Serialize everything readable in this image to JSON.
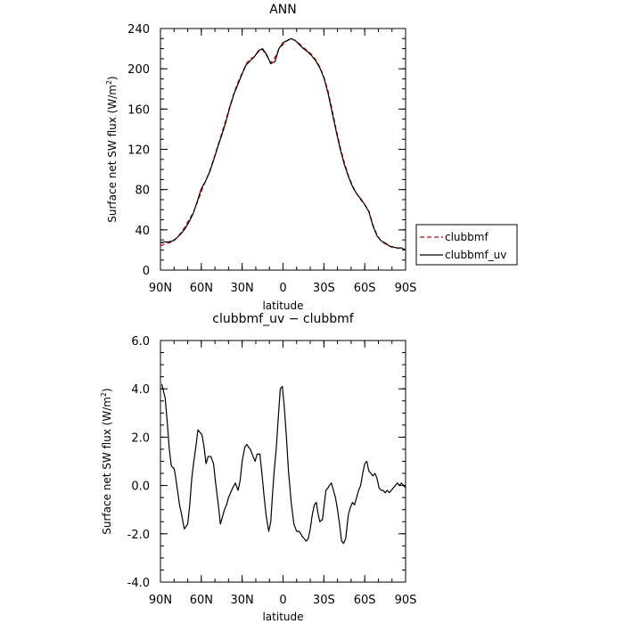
{
  "chart_data": [
    {
      "type": "line",
      "title": "ANN",
      "xlabel": "latitude",
      "ylabel": "Surface net SW flux (W/m²)",
      "xlim": [
        -90,
        90
      ],
      "ylim": [
        0,
        240
      ],
      "x_ticks": [
        -90,
        -60,
        -30,
        0,
        30,
        60,
        90
      ],
      "x_tick_labels": [
        "90N",
        "60N",
        "30N",
        "0",
        "30S",
        "60S",
        "90S"
      ],
      "y_ticks": [
        0,
        40,
        80,
        120,
        160,
        200,
        240
      ],
      "y_tick_labels": [
        "0",
        "40",
        "80",
        "120",
        "160",
        "200",
        "240"
      ],
      "legend_position": "right",
      "series": [
        {
          "name": "clubbmf",
          "color": "#cc0000",
          "style": "dashed",
          "x": [
            -90,
            -87,
            -84,
            -81,
            -78,
            -75,
            -72,
            -69,
            -66,
            -63,
            -60,
            -57,
            -54,
            -51,
            -48,
            -45,
            -42,
            -39,
            -36,
            -33,
            -30,
            -27,
            -24,
            -21,
            -18,
            -15,
            -12,
            -9,
            -6,
            -3,
            0,
            3,
            6,
            9,
            12,
            15,
            18,
            21,
            24,
            27,
            30,
            33,
            36,
            39,
            42,
            45,
            48,
            51,
            54,
            57,
            60,
            63,
            66,
            69,
            72,
            75,
            78,
            81,
            84,
            87,
            90
          ],
          "y": [
            24,
            26,
            27,
            28,
            32,
            37,
            43,
            50,
            57,
            67,
            78,
            88,
            98,
            110,
            123,
            136,
            149,
            163,
            176,
            187,
            196,
            205,
            210,
            212,
            217,
            219,
            213,
            206,
            211,
            220,
            224,
            228,
            230,
            228,
            225,
            221,
            218,
            214,
            209,
            202,
            192,
            178,
            160,
            140,
            122,
            107,
            94,
            84,
            76,
            70,
            65,
            59,
            45,
            35,
            29,
            26,
            24,
            22,
            22,
            21,
            20
          ]
        },
        {
          "name": "clubbmf_uv",
          "color": "#000000",
          "style": "solid",
          "x": [
            -90,
            -87,
            -84,
            -81,
            -78,
            -75,
            -72,
            -69,
            -66,
            -63,
            -60,
            -57,
            -54,
            -51,
            -48,
            -45,
            -42,
            -39,
            -36,
            -33,
            -30,
            -27,
            -24,
            -21,
            -18,
            -15,
            -12,
            -9,
            -6,
            -3,
            0,
            3,
            6,
            9,
            12,
            15,
            18,
            21,
            24,
            27,
            30,
            33,
            36,
            39,
            42,
            45,
            48,
            51,
            54,
            57,
            60,
            63,
            66,
            69,
            72,
            75,
            78,
            81,
            84,
            87,
            90
          ],
          "y": [
            27,
            28,
            28,
            29,
            32,
            36,
            41,
            48,
            56,
            68,
            81,
            88,
            97,
            109,
            122,
            134,
            147,
            162,
            175,
            185,
            195,
            204,
            208,
            212,
            218,
            220,
            214,
            205,
            207,
            220,
            226,
            228,
            230,
            228,
            224,
            220,
            217,
            213,
            208,
            201,
            191,
            176,
            157,
            138,
            120,
            105,
            93,
            83,
            76,
            71,
            65,
            58,
            44,
            34,
            29,
            27,
            24,
            23,
            22,
            22,
            20
          ]
        }
      ]
    },
    {
      "type": "line",
      "title": "clubbmf_uv − clubbmf",
      "xlabel": "latitude",
      "ylabel": "Surface net SW flux (W/m²)",
      "xlim": [
        -90,
        90
      ],
      "ylim": [
        -4,
        6
      ],
      "x_ticks": [
        -90,
        -60,
        -30,
        0,
        30,
        60,
        90
      ],
      "x_tick_labels": [
        "90N",
        "60N",
        "30N",
        "0",
        "30S",
        "60S",
        "90S"
      ],
      "y_ticks": [
        -4,
        -2,
        0,
        2,
        4,
        6
      ],
      "y_tick_labels": [
        "-4.0",
        "-2.0",
        "0.0",
        "2.0",
        "4.0",
        "6.0"
      ],
      "series": [
        {
          "color": "#000000",
          "style": "solid",
          "x": [
            -89,
            -86.5,
            -85,
            -83.5,
            -82,
            -80,
            -79,
            -77.5,
            -76,
            -74.5,
            -72.5,
            -70,
            -68.5,
            -67,
            -65.5,
            -64,
            -62.5,
            -61,
            -59.5,
            -58,
            -56.5,
            -55,
            -53,
            -51,
            -49.5,
            -47.5,
            -46,
            -44.5,
            -43,
            -41.5,
            -40,
            -38.5,
            -37,
            -35,
            -33,
            -31.5,
            -30,
            -28,
            -26.5,
            -25.5,
            -24,
            -22,
            -20.5,
            -19,
            -17,
            -15.5,
            -14,
            -12.5,
            -10.5,
            -9,
            -8,
            -6.5,
            -5,
            -3.5,
            -2,
            -0.5,
            1,
            2.5,
            4,
            6,
            8,
            10,
            12,
            14,
            15.5,
            17,
            18.5,
            20,
            21.5,
            23,
            24.5,
            25.5,
            27,
            29,
            30,
            31.5,
            33,
            34,
            35.5,
            37,
            38.5,
            40,
            41.5,
            43,
            44.5,
            46,
            47,
            48,
            49.5,
            51,
            52.5,
            54,
            55.5,
            57,
            58.5,
            60,
            61.5,
            63,
            64.5,
            66,
            67.5,
            69,
            70.5,
            72,
            73.5,
            75,
            76.5,
            78,
            79.5,
            81,
            82.5,
            84,
            85.5,
            87,
            88.5,
            90
          ],
          "y": [
            4.2,
            3.6,
            2.6,
            1.5,
            0.8,
            0.7,
            0.4,
            -0.2,
            -0.8,
            -1.2,
            -1.8,
            -1.6,
            -0.8,
            0.3,
            1.0,
            1.6,
            2.3,
            2.2,
            2.1,
            1.6,
            0.9,
            1.2,
            1.2,
            0.9,
            0.1,
            -0.8,
            -1.6,
            -1.3,
            -1.0,
            -0.8,
            -0.5,
            -0.3,
            -0.1,
            0.1,
            -0.2,
            0.2,
            1.0,
            1.6,
            1.7,
            1.6,
            1.5,
            1.2,
            1.0,
            1.3,
            1.3,
            0.5,
            -0.4,
            -1.2,
            -1.9,
            -1.5,
            -0.6,
            0.6,
            1.5,
            2.8,
            4.0,
            4.1,
            3.2,
            2.0,
            0.6,
            -0.7,
            -1.6,
            -1.9,
            -1.9,
            -2.1,
            -2.2,
            -2.3,
            -2.2,
            -1.8,
            -1.2,
            -0.8,
            -0.7,
            -1.1,
            -1.5,
            -1.4,
            -0.9,
            -0.2,
            -0.1,
            0.0,
            0.1,
            -0.2,
            -0.5,
            -1.0,
            -1.6,
            -2.3,
            -2.4,
            -2.2,
            -1.7,
            -1.2,
            -0.9,
            -0.7,
            -0.8,
            -0.5,
            -0.2,
            0.0,
            0.5,
            0.9,
            1.0,
            0.6,
            0.5,
            0.4,
            0.5,
            0.3,
            -0.1,
            -0.2,
            -0.2,
            -0.3,
            -0.2,
            -0.3,
            -0.2,
            -0.1,
            0.0,
            0.1,
            0.0,
            0.1,
            0.0,
            -0.1
          ]
        }
      ]
    }
  ]
}
